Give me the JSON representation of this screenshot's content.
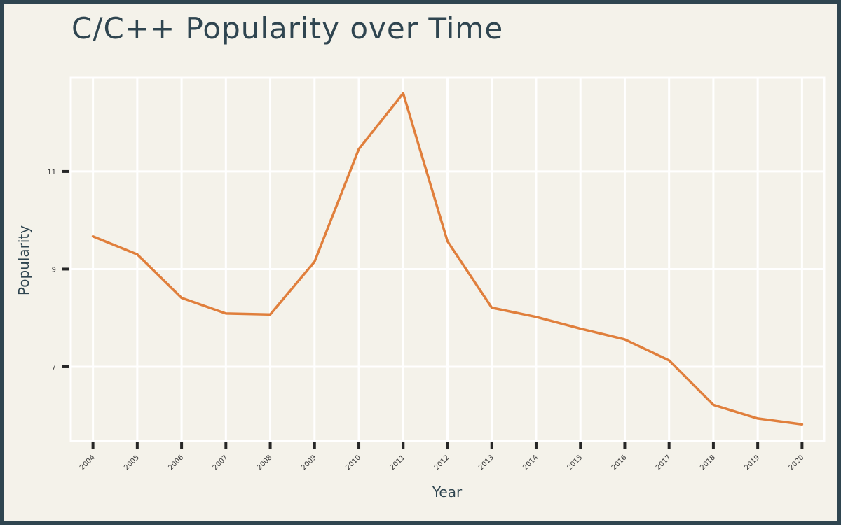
{
  "chart_data": {
    "type": "line",
    "title": "C/C++ Popularity over Time",
    "xlabel": "Year",
    "ylabel": "Popularity",
    "x": [
      2004,
      2005,
      2006,
      2007,
      2008,
      2009,
      2010,
      2011,
      2012,
      2013,
      2014,
      2015,
      2016,
      2017,
      2018,
      2019,
      2020
    ],
    "x_tick_labels": [
      "2004",
      "2005",
      "2006",
      "2007",
      "2008",
      "2009",
      "2010",
      "2011",
      "2012",
      "2013",
      "2014",
      "2015",
      "2016",
      "2017",
      "2018",
      "2019",
      "2020"
    ],
    "series": [
      {
        "values": [
          9.67,
          9.3,
          8.41,
          8.09,
          8.07,
          9.15,
          11.46,
          12.6,
          9.57,
          8.21,
          8.02,
          7.78,
          7.56,
          7.13,
          6.22,
          5.94,
          5.82
        ]
      }
    ],
    "y_ticks": [
      7,
      9,
      11
    ],
    "y_tick_labels": [
      "7",
      "9",
      "11"
    ],
    "xlim": [
      2003.5,
      2020.5
    ],
    "ylim": [
      5.48,
      12.92
    ],
    "grid": true,
    "colors": {
      "line": "#e07f3c",
      "background": "#f4f2ea",
      "frame": "#2f4550",
      "grid": "#ffffff",
      "text": "#2f4550"
    }
  }
}
